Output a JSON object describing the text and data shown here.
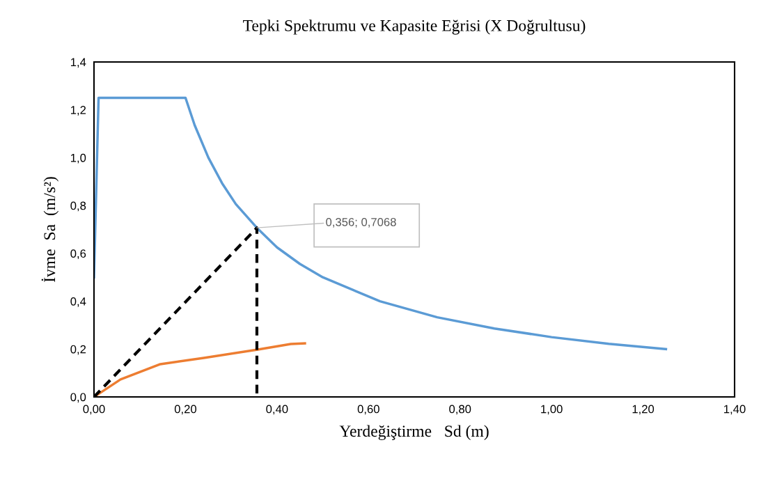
{
  "chart_data": {
    "type": "line",
    "title": "Tepki Spektrumu ve Kapasite Eğrisi (X Doğrultusu)",
    "xlabel": "Yerdeğiştirme   Sd (m)",
    "ylabel": "İvme  Sa  (m/s²)",
    "series": [
      {
        "color": "#5b9bd5",
        "x": [
          0,
          0.01,
          0.2,
          0.22,
          0.25,
          0.28,
          0.31,
          0.356,
          0.4,
          0.45,
          0.5,
          0.625,
          0.75,
          0.875,
          1.0,
          1.125,
          1.25
        ],
        "values": [
          0.5,
          1.25,
          1.25,
          1.136,
          1.0,
          0.893,
          0.806,
          0.7068,
          0.625,
          0.556,
          0.5,
          0.4,
          0.333,
          0.286,
          0.25,
          0.222,
          0.2
        ]
      },
      {
        "color": "#ed7d31",
        "x": [
          0,
          0.058,
          0.145,
          0.24,
          0.358,
          0.43,
          0.461
        ],
        "values": [
          0,
          0.073,
          0.137,
          0.163,
          0.198,
          0.221,
          0.224
        ]
      },
      {
        "color": "#000000",
        "line_style": "dashed",
        "x": [
          0,
          0.356,
          0.356
        ],
        "values": [
          0,
          0.7068,
          0
        ]
      }
    ],
    "annotations": [
      {
        "text": "0,356; 0,7068",
        "x": 0.356,
        "y": 0.7068
      }
    ],
    "xlim": [
      0,
      1.4
    ],
    "xticks": [
      {
        "value": 0,
        "label": "0,00"
      },
      {
        "value": 0.2,
        "label": "0,20"
      },
      {
        "value": 0.4,
        "label": "0,40"
      },
      {
        "value": 0.6,
        "label": "0,60"
      },
      {
        "value": 0.8,
        "label": "0,80"
      },
      {
        "value": 1.0,
        "label": "1,00"
      },
      {
        "value": 1.2,
        "label": "1,20"
      },
      {
        "value": 1.4,
        "label": "1,40"
      }
    ],
    "ylim": [
      0,
      1.4
    ],
    "yticks": [
      {
        "value": 0,
        "label": "0,0"
      },
      {
        "value": 0.2,
        "label": "0,2"
      },
      {
        "value": 0.4,
        "label": "0,4"
      },
      {
        "value": 0.6,
        "label": "0,6"
      },
      {
        "value": 0.8,
        "label": "0,8"
      },
      {
        "value": 1.0,
        "label": "1,0"
      },
      {
        "value": 1.2,
        "label": "1,2"
      },
      {
        "value": 1.4,
        "label": "1,4"
      }
    ],
    "grid": false,
    "legend": false,
    "marker": "none"
  }
}
